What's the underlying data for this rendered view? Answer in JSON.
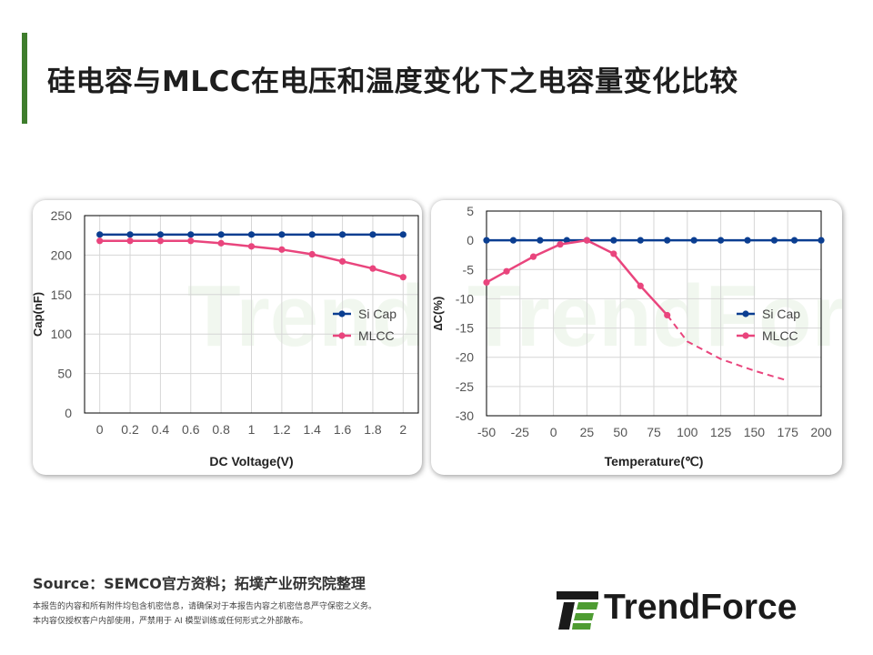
{
  "title": "硅电容与MLCC在电压和温度变化下之电容量变化比较",
  "source": "Source：SEMCO官方资料；拓墣产业研究院整理",
  "disclaimer": [
    "本报告的内容和所有附件均包含机密信息，请确保对于本报告内容之机密信息严守保密之义务。",
    "本内容仅授权客户内部使用，严禁用于 AI 模型训练或任何形式之外部散布。"
  ],
  "logo": {
    "text": "TrendForce",
    "watermark": "TrendForce"
  },
  "colors": {
    "accent_bar": "#3e7d2c",
    "si_cap": "#0b3e91",
    "mlcc": "#e9457d",
    "logo_green": "#4e9c32",
    "logo_dark": "#1a1a1a"
  },
  "chart_data": [
    {
      "type": "line",
      "xlabel": "DC Voltage(V)",
      "ylabel": "Cap(nF)",
      "x": [
        0,
        0.2,
        0.4,
        0.6,
        0.8,
        1,
        1.2,
        1.4,
        1.6,
        1.8,
        2
      ],
      "x_tick_labels": [
        "0",
        "0.2",
        "0.4",
        "0.6",
        "0.8",
        "1",
        "1.2",
        "1.4",
        "1.6",
        "1.8",
        "2"
      ],
      "xlim": [
        -0.1,
        2.1
      ],
      "ylim": [
        0,
        250
      ],
      "y_ticks": [
        0,
        50,
        100,
        150,
        200,
        250
      ],
      "grid": true,
      "legend": "right",
      "series": [
        {
          "name": "Si Cap",
          "color": "#0b3e91",
          "values": [
            226,
            226,
            226,
            226,
            226,
            226,
            226,
            226,
            226,
            226,
            226
          ]
        },
        {
          "name": "MLCC",
          "color": "#e9457d",
          "values": [
            218,
            218,
            218,
            218,
            215,
            211,
            207,
            201,
            192,
            183,
            172
          ]
        }
      ]
    },
    {
      "type": "line",
      "xlabel": "Temperature(℃)",
      "ylabel": "∆C(%)",
      "x": [
        -50,
        -25,
        0,
        25,
        50,
        75,
        100,
        125,
        150,
        175,
        200
      ],
      "x_tick_labels": [
        "-50",
        "-25",
        "0",
        "25",
        "50",
        "75",
        "100",
        "125",
        "150",
        "175",
        "200"
      ],
      "xlim": [
        -50,
        200
      ],
      "ylim": [
        -30,
        5
      ],
      "y_ticks": [
        5,
        0,
        -5,
        -10,
        -15,
        -20,
        -25,
        -30
      ],
      "grid": true,
      "legend": "right",
      "series": [
        {
          "name": "Si Cap",
          "color": "#0b3e91",
          "x": [
            -50,
            -30,
            -10,
            10,
            25,
            45,
            65,
            85,
            105,
            125,
            145,
            165,
            180,
            200
          ],
          "values": [
            0,
            0,
            0,
            0,
            0,
            0,
            0,
            0,
            0,
            0,
            0,
            0,
            0,
            0
          ]
        },
        {
          "name": "MLCC",
          "color": "#e9457d",
          "x": [
            -50,
            -35,
            -15,
            5,
            25,
            45,
            65,
            85
          ],
          "values": [
            -7.2,
            -5.3,
            -2.8,
            -0.7,
            0,
            -2.3,
            -7.8,
            -12.8
          ],
          "extrapolated": {
            "x": [
              85,
              100,
              125,
              150,
              175
            ],
            "values": [
              -12.8,
              -17.3,
              -20.3,
              -22.3,
              -24
            ]
          }
        }
      ]
    }
  ]
}
